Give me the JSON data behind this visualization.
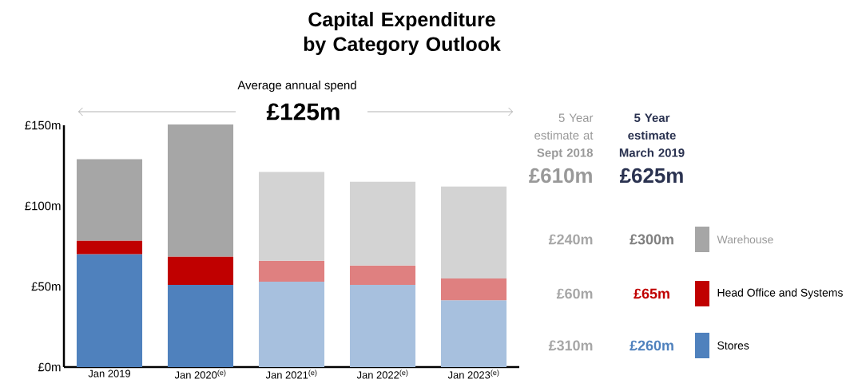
{
  "chart_data": {
    "type": "bar",
    "title": "Capital Expenditure by Category Outlook",
    "stacked": true,
    "categories": [
      "Jan 2019",
      "Jan 2020$^{(e)}$",
      "Jan 2021$^{(e)}$",
      "Jan 2022$^{(e)}$",
      "Jan 2023$^{(e)}$"
    ],
    "series": [
      {
        "name": "Stores",
        "color": "#4f81bd",
        "colors": [
          "#4f81bd",
          "#4f81bd",
          "#a7c0de",
          "#a7c0de",
          "#a7c0de"
        ],
        "values": [
          70,
          51,
          53,
          51,
          41.5
        ]
      },
      {
        "name": "Head Office and Systems",
        "color": "#c00000",
        "colors": [
          "#c00000",
          "#c00000",
          "#df8080",
          "#df8080",
          "#df8080"
        ],
        "values": [
          8.5,
          17.5,
          13,
          12,
          13.5
        ]
      },
      {
        "name": "Warehouse",
        "color": "#a6a6a6",
        "colors": [
          "#a6a6a6",
          "#a6a6a6",
          "#d3d3d3",
          "#d3d3d3",
          "#d3d3d3"
        ],
        "values": [
          50.5,
          82,
          55,
          52,
          57
        ]
      }
    ],
    "ylim": [
      0,
      150
    ],
    "yticks": [
      {
        "value": 0,
        "label": "£0m"
      },
      {
        "value": 50,
        "label": "£50m"
      },
      {
        "value": 100,
        "label": "£100m"
      },
      {
        "value": 150,
        "label": "£150m"
      }
    ],
    "grid": false,
    "legend": "right",
    "annotations": [
      "Average annual spend",
      "£125m",
      "5 Year estimate at **Sept 2018**",
      "5 Year estimate March 2019",
      "£610m",
      "£625m",
      "£240m",
      "£300m",
      "£60m",
      "£65m",
      "£310m",
      "£260m"
    ]
  }
}
